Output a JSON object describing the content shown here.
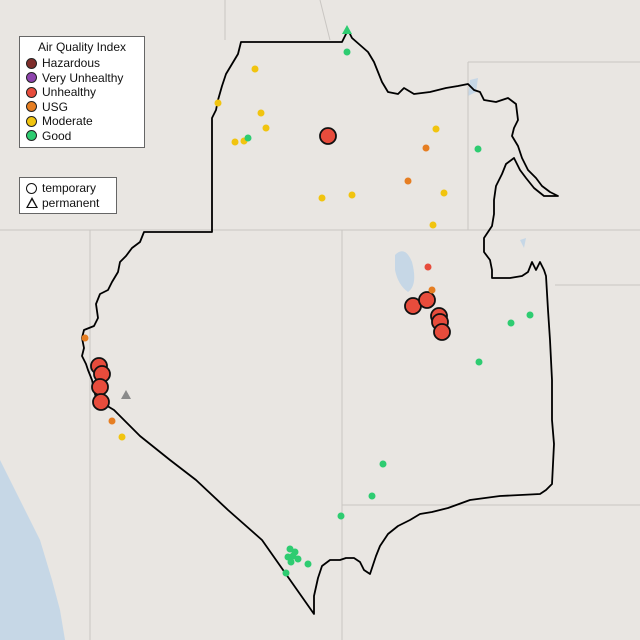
{
  "legend": {
    "title": "Air Quality Index",
    "categories": [
      {
        "label": "Hazardous",
        "color": "#7e2d2a"
      },
      {
        "label": "Very Unhealthy",
        "color": "#8e44ad"
      },
      {
        "label": "Unhealthy",
        "color": "#e74c3c"
      },
      {
        "label": "USG",
        "color": "#e67e22"
      },
      {
        "label": "Moderate",
        "color": "#f1c40f"
      },
      {
        "label": "Good",
        "color": "#2ecc71"
      }
    ],
    "monitor_types": [
      {
        "label": "temporary",
        "icon": "circle-outline-icon"
      },
      {
        "label": "permanent",
        "icon": "triangle-outline-icon"
      }
    ]
  },
  "colors": {
    "land": "#e9e6e2",
    "water": "#c4d6e6",
    "border_state": "#c9c6c2",
    "region_outline": "#000000"
  },
  "monitor_counts": {
    "Hazardous": 0,
    "Very Unhealthy": 0,
    "Unhealthy": 12,
    "USG": 5,
    "Moderate": 16,
    "Good": 14
  }
}
